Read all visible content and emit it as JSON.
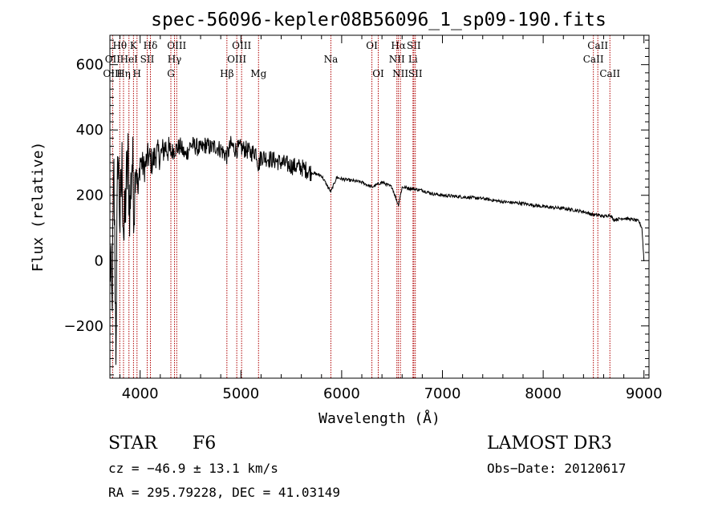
{
  "chart_data": {
    "type": "line",
    "title": "spec-56096-kepler08B56096_1_sp09-190.fits",
    "xlabel": "Wavelength (Å)",
    "ylabel": "Flux (relative)",
    "xlim": [
      3700,
      9050
    ],
    "ylim": [
      -360,
      690
    ],
    "xticks": [
      4000,
      5000,
      6000,
      7000,
      8000,
      9000
    ],
    "yticks": [
      -200,
      0,
      200,
      400,
      600
    ],
    "xtick_labels": [
      "4000",
      "5000",
      "6000",
      "7000",
      "8000",
      "9000"
    ],
    "ytick_labels": [
      "−200",
      "0",
      "200",
      "400",
      "600"
    ],
    "series": [
      {
        "name": "flux",
        "x": [
          3700,
          3720,
          3740,
          3760,
          3780,
          3800,
          3820,
          3840,
          3860,
          3880,
          3900,
          3920,
          3940,
          3960,
          3980,
          4000,
          4040,
          4080,
          4120,
          4160,
          4200,
          4250,
          4300,
          4340,
          4400,
          4450,
          4500,
          4550,
          4600,
          4650,
          4700,
          4750,
          4800,
          4861,
          4900,
          4950,
          5000,
          5050,
          5100,
          5150,
          5175,
          5200,
          5300,
          5400,
          5500,
          5600,
          5700,
          5800,
          5893,
          5950,
          6000,
          6100,
          6200,
          6300,
          6400,
          6500,
          6563,
          6600,
          6700,
          6800,
          6900,
          7000,
          7200,
          7400,
          7600,
          7800,
          8000,
          8200,
          8400,
          8498,
          8542,
          8600,
          8662,
          8700,
          8800,
          8900,
          8950,
          8980,
          9000
        ],
        "values": [
          20,
          -150,
          250,
          -250,
          350,
          120,
          280,
          60,
          220,
          300,
          150,
          320,
          180,
          300,
          200,
          310,
          280,
          320,
          300,
          330,
          320,
          350,
          330,
          340,
          350,
          320,
          355,
          350,
          340,
          355,
          345,
          350,
          340,
          320,
          355,
          340,
          345,
          340,
          330,
          335,
          290,
          320,
          310,
          300,
          290,
          285,
          270,
          260,
          210,
          255,
          250,
          245,
          240,
          225,
          240,
          225,
          170,
          225,
          220,
          215,
          205,
          200,
          195,
          190,
          180,
          175,
          165,
          160,
          150,
          140,
          140,
          135,
          140,
          125,
          130,
          125,
          120,
          100,
          0
        ]
      }
    ],
    "line_labels": [
      {
        "name": "Hθ",
        "x": 3798,
        "row": 1
      },
      {
        "name": "OII",
        "x": 3727,
        "row": 2
      },
      {
        "name": "OIII",
        "x": 3727,
        "row": 3
      },
      {
        "name": "K",
        "x": 3934,
        "row": 1
      },
      {
        "name": "HeI",
        "x": 3889,
        "row": 2
      },
      {
        "name": "Hη",
        "x": 3835,
        "row": 3
      },
      {
        "name": "Hδ",
        "x": 4102,
        "row": 1
      },
      {
        "name": "SII",
        "x": 4070,
        "row": 2
      },
      {
        "name": "H",
        "x": 3969,
        "row": 3
      },
      {
        "name": "OIII",
        "x": 4363,
        "row": 1
      },
      {
        "name": "Hγ",
        "x": 4341,
        "row": 2
      },
      {
        "name": "G",
        "x": 4305,
        "row": 3
      },
      {
        "name": "OIII",
        "x": 5007,
        "row": 1
      },
      {
        "name": "OIII",
        "x": 4959,
        "row": 2
      },
      {
        "name": "Hβ",
        "x": 4861,
        "row": 3
      },
      {
        "name": "Mg",
        "x": 5175,
        "row": 3
      },
      {
        "name": "Na",
        "x": 5893,
        "row": 2
      },
      {
        "name": "OI",
        "x": 6300,
        "row": 1
      },
      {
        "name": "OI",
        "x": 6363,
        "row": 3
      },
      {
        "name": "Hα",
        "x": 6563,
        "row": 1
      },
      {
        "name": "SII",
        "x": 6716,
        "row": 1
      },
      {
        "name": "NII",
        "x": 6548,
        "row": 2
      },
      {
        "name": "Li",
        "x": 6708,
        "row": 2
      },
      {
        "name": "NII",
        "x": 6583,
        "row": 3
      },
      {
        "name": "SII",
        "x": 6731,
        "row": 3
      },
      {
        "name": "CaII",
        "x": 8542,
        "row": 1
      },
      {
        "name": "CaII",
        "x": 8498,
        "row": 2
      },
      {
        "name": "CaII",
        "x": 8662,
        "row": 3
      }
    ]
  },
  "info": {
    "class": "STAR",
    "subclass": "F6",
    "survey": "LAMOST DR3",
    "cz": "cz = −46.9 ± 13.1 km/s",
    "obs_date": "Obs−Date: 20120617",
    "radec": "RA = 295.79228, DEC =  41.03149"
  }
}
